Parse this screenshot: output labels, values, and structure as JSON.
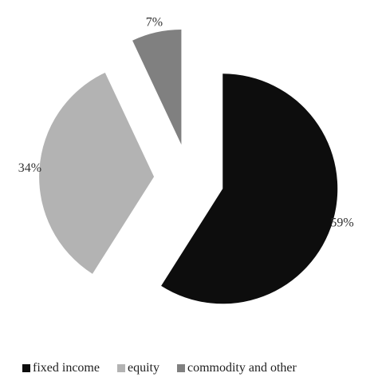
{
  "chart_data": {
    "type": "pie",
    "categories": [
      "fixed income",
      "equity",
      "commodity and other"
    ],
    "values": [
      59,
      34,
      7
    ],
    "data_labels": [
      "59%",
      "34%",
      "7%"
    ],
    "colors": [
      "#0d0d0d",
      "#b3b3b3",
      "#808080"
    ],
    "exploded": true,
    "legend_position": "bottom",
    "title": ""
  }
}
